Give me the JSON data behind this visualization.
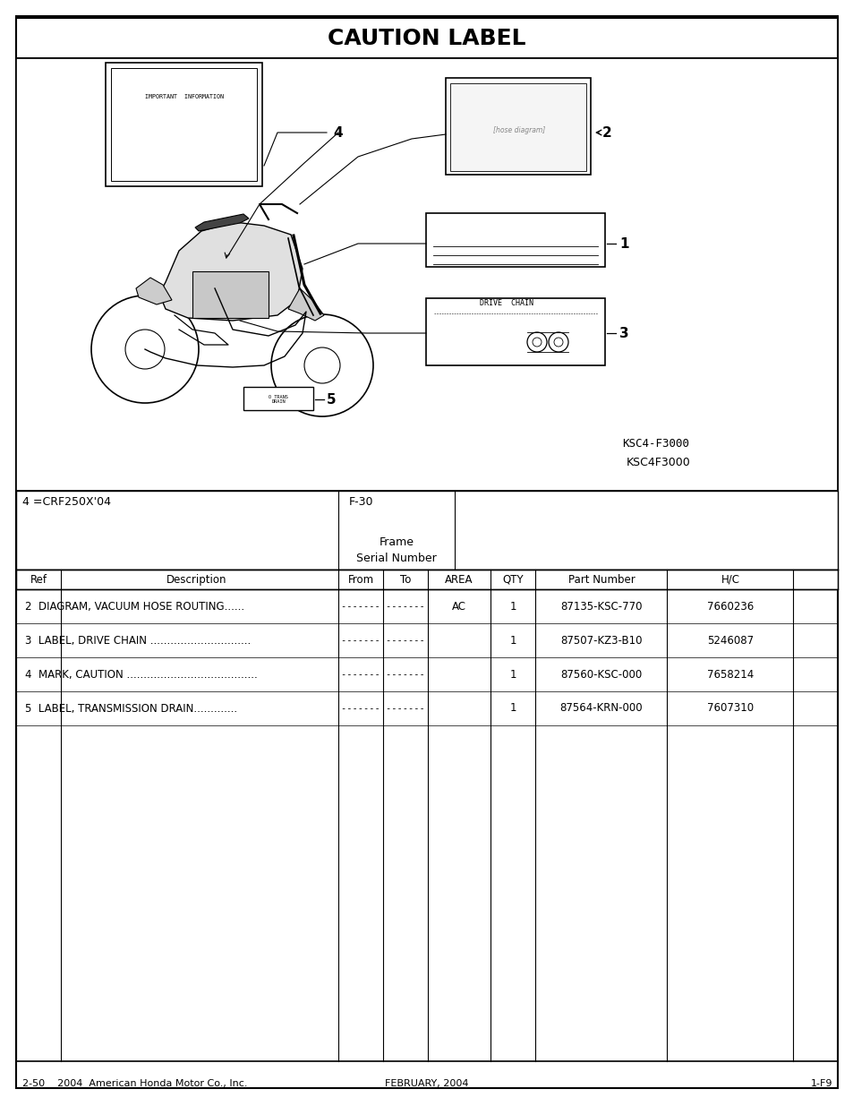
{
  "title": "CAUTION LABEL",
  "diagram_ref": "KSC4-F3000",
  "diagram_ref2": "KSC4F3000",
  "model_code": "4 =CRF250X'04",
  "frame_code": "F-30",
  "frame_serial_label": "Frame\nSerial Number",
  "table_headers": [
    "Ref",
    "Description",
    "From",
    "To",
    "AREA",
    "QTY",
    "Part Number",
    "H/C"
  ],
  "parts": [
    {
      "ref": "2",
      "desc": "2  DIAGRAM, VACUUM HOSE ROUTING......",
      "from": "------- -------",
      "area": "AC",
      "qty": "1",
      "part": "87135-KSC-770",
      "hc": "7660236"
    },
    {
      "ref": "3",
      "desc": "3  LABEL, DRIVE CHAIN ..............................",
      "from": "------- -------",
      "area": "",
      "qty": "1",
      "part": "87507-KZ3-B10",
      "hc": "5246087"
    },
    {
      "ref": "4",
      "desc": "4  MARK, CAUTION .......................................",
      "from": "------- -------",
      "area": "",
      "qty": "1",
      "part": "87560-KSC-000",
      "hc": "7658214"
    },
    {
      "ref": "5",
      "desc": "5  LABEL, TRANSMISSION DRAIN.............",
      "from": "------- -------",
      "area": "",
      "qty": "1",
      "part": "87564-KRN-000",
      "hc": "7607310"
    }
  ],
  "footer_left": "2-50    2004  American Honda Motor Co., Inc.",
  "footer_center": "FEBRUARY, 2004",
  "footer_right": "1-F9",
  "bg_color": "#ffffff",
  "border_color": "#000000",
  "text_color": "#000000"
}
